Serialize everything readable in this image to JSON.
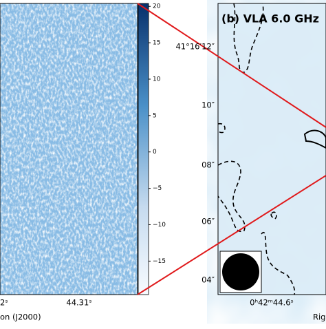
{
  "left_panel": {
    "colorbar": {
      "lim": [
        -19.6,
        20.4
      ],
      "ticks": [
        20,
        15,
        10,
        5,
        0,
        {
          "value": -5,
          "label": "−5"
        },
        {
          "value": -10,
          "label": "−10"
        },
        {
          "value": -15,
          "label": "−15"
        }
      ]
    },
    "x_ticks": [
      "2ˢ",
      "44.31ˢ"
    ],
    "x_label": "on (J2000)"
  },
  "right_panel": {
    "title": "(b) VLA 6.0 GHz",
    "y_ticks": [
      "41°16′12″",
      "10″",
      "08″",
      "06″",
      "04″"
    ],
    "x_ticks": [
      "0ʰ42ᵐ44.6ˢ"
    ],
    "x_label": "Rig"
  }
}
